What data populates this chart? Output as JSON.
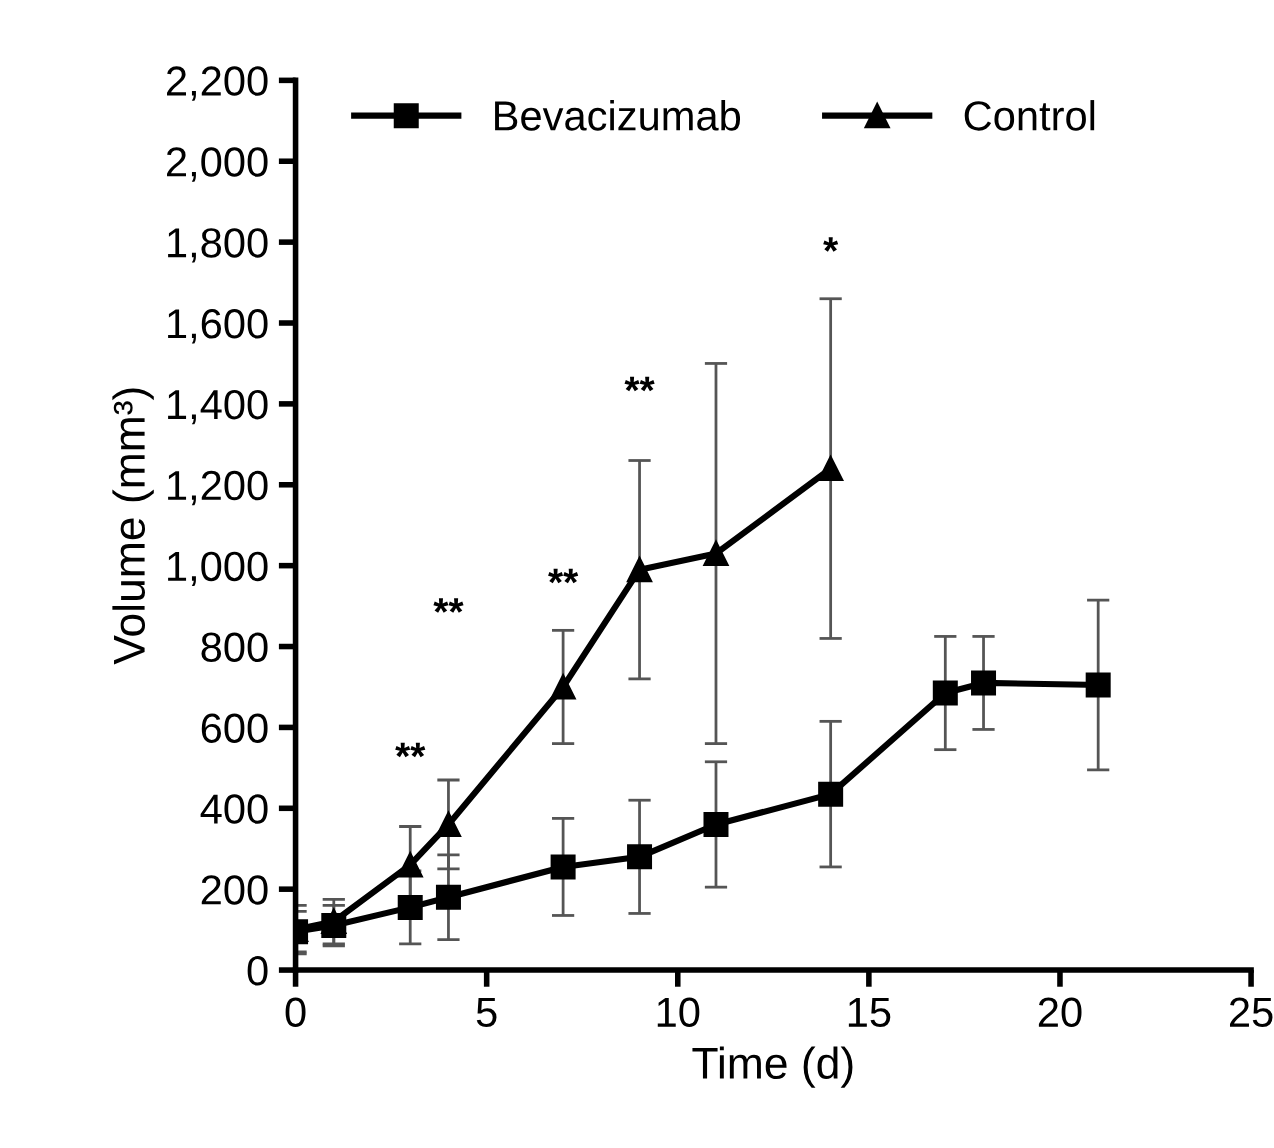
{
  "chart_data": {
    "type": "line",
    "xlabel": "Time (d)",
    "ylabel": "Volume (mm³)",
    "xlim": [
      0,
      25
    ],
    "xticks": [
      0,
      5,
      10,
      15,
      20,
      25
    ],
    "ylim": [
      0,
      2200
    ],
    "yticks": [
      0,
      200,
      400,
      600,
      800,
      {
        "value": 1000,
        "label": "1,000"
      },
      {
        "value": 1200,
        "label": "1,200"
      },
      {
        "value": 1400,
        "label": "1,400"
      },
      {
        "value": 1600,
        "label": "1,600"
      },
      {
        "value": 1800,
        "label": "1,800"
      },
      {
        "value": 2000,
        "label": "2,000"
      },
      {
        "value": 2200,
        "label": "2,200"
      }
    ],
    "grid": false,
    "legend": "top",
    "series": [
      {
        "name": "Bevacizumab",
        "color": "#000000",
        "marker": "square",
        "x": [
          0,
          1,
          3,
          4,
          7,
          9,
          11,
          14,
          17,
          18,
          21
        ],
        "values": [
          95,
          110,
          155,
          180,
          255,
          280,
          360,
          435,
          685,
          710,
          705
        ],
        "errors": [
          50,
          50,
          90,
          105,
          120,
          140,
          155,
          180,
          140,
          115,
          210
        ]
      },
      {
        "name": "Control",
        "color": "#000000",
        "marker": "triangle",
        "x": [
          0,
          1,
          3,
          4,
          7,
          9,
          11,
          14
        ],
        "values": [
          100,
          120,
          260,
          360,
          700,
          990,
          1030,
          1240
        ],
        "errors": [
          60,
          55,
          95,
          110,
          140,
          270,
          470,
          420
        ]
      }
    ],
    "annotations": [
      "**",
      "**",
      "**",
      "**",
      "*"
    ]
  }
}
